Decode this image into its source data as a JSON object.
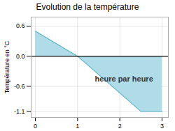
{
  "chart_data": {
    "type": "area",
    "title": "Evolution de la température",
    "ylabel": "Température en °C",
    "x": [
      0,
      1,
      2.5,
      3
    ],
    "series": [
      {
        "type": "area",
        "color": "#b0dce8",
        "values": [
          0.5,
          0.0,
          -1.1,
          -1.1
        ]
      },
      {
        "type": "line",
        "color": "#5ab4cc",
        "values": [
          0.5,
          0.0,
          -1.1,
          -1.1
        ]
      }
    ],
    "xlim": [
      -0.1,
      3.15
    ],
    "ylim": [
      -1.22,
      0.78
    ],
    "xticks": [
      0,
      1,
      2,
      3
    ],
    "yticks": [
      -1.1,
      -0.6,
      {
        "value": 0.0,
        "label": "0.0"
      },
      0.6
    ],
    "grid": true,
    "annotations": [
      {
        "text": "heure par heure",
        "x": 2.1,
        "y": -0.45
      }
    ]
  }
}
